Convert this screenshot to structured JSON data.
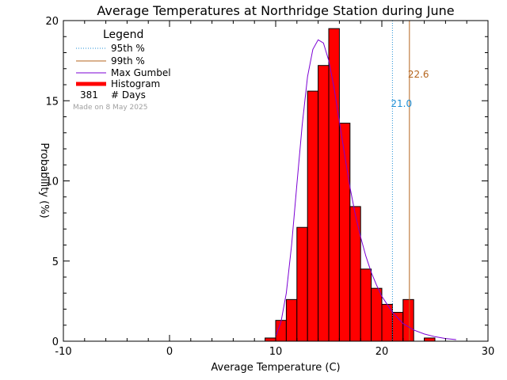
{
  "chart_data": {
    "type": "bar",
    "title": "Average Temperatures at Northridge Station during June",
    "xlabel": "Average Temperature (C)",
    "ylabel": "Probability (%)",
    "xlim": [
      -10,
      30
    ],
    "ylim": [
      0,
      20
    ],
    "x_ticks": [
      "-10",
      "0",
      "10",
      "20",
      "30"
    ],
    "y_ticks": [
      "0",
      "5",
      "10",
      "15",
      "20"
    ],
    "bin_width": 1,
    "histogram": {
      "name": "Histogram",
      "bin_starts": [
        9,
        10,
        11,
        12,
        13,
        14,
        15,
        16,
        17,
        18,
        19,
        20,
        21,
        22,
        23,
        24
      ],
      "values": [
        0.2,
        1.3,
        2.6,
        7.1,
        15.6,
        17.2,
        19.5,
        13.6,
        8.4,
        4.5,
        3.3,
        2.3,
        1.8,
        2.6,
        0.0,
        0.2
      ]
    },
    "gumbel_curve": {
      "name": "Max Gumbel",
      "x": [
        10.0,
        10.5,
        11.0,
        11.5,
        12.0,
        12.5,
        13.0,
        13.5,
        14.0,
        14.5,
        15.0,
        15.5,
        16.0,
        16.5,
        17.0,
        17.5,
        18.0,
        18.5,
        19.0,
        19.5,
        20.0,
        21.0,
        22.0,
        23.0,
        24.0,
        25.0,
        26.0,
        27.0
      ],
      "y": [
        0.3,
        1.2,
        3.0,
        6.0,
        9.8,
        13.5,
        16.5,
        18.2,
        18.8,
        18.6,
        17.5,
        15.8,
        13.7,
        11.6,
        9.6,
        7.9,
        6.5,
        5.3,
        4.3,
        3.5,
        2.8,
        1.8,
        1.1,
        0.7,
        0.45,
        0.28,
        0.17,
        0.1
      ]
    },
    "percentile_95": {
      "name": "95th %",
      "value": 21.0,
      "label": "21.0",
      "color": "#1f8fd6"
    },
    "percentile_99": {
      "name": "99th %",
      "value": 22.6,
      "label": "22.6",
      "color": "#b5651d"
    },
    "legend": {
      "title": "Legend",
      "items": [
        "95th %",
        "99th %",
        "Max Gumbel",
        "Histogram"
      ],
      "days_count": "381",
      "days_label": "# Days",
      "placement": "top-left"
    },
    "note": "Made on 8 May 2025",
    "colors": {
      "histogram_fill": "#ff0000",
      "histogram_edge": "#000000",
      "gumbel": "#7b00d4",
      "percentile_95": "#1f8fd6",
      "percentile_99": "#b5651d"
    }
  }
}
